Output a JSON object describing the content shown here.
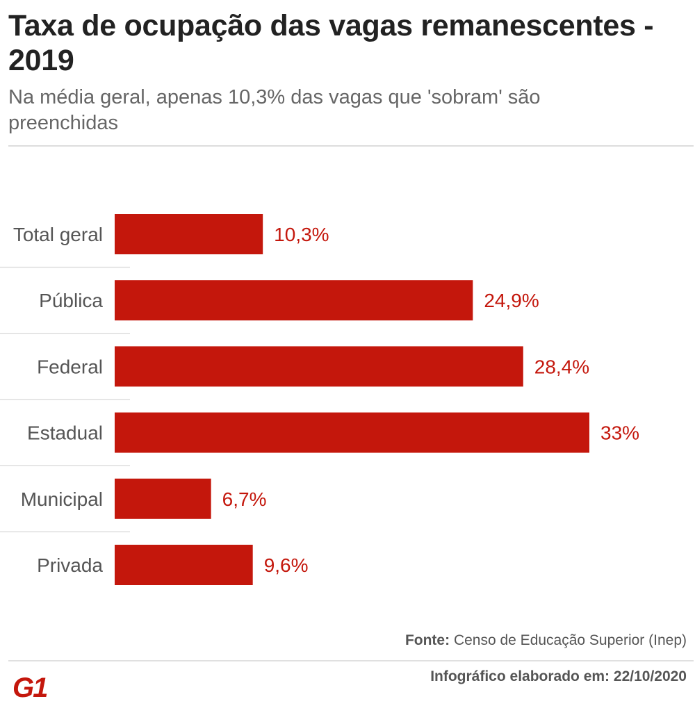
{
  "header": {
    "title": "Taxa de ocupação das vagas remanescentes - 2019",
    "subtitle": "Na média geral, apenas 10,3% das vagas que 'sobram' são preenchidas"
  },
  "footer": {
    "source_label": "Fonte:",
    "source_text": "Censo de Educação Superior (Inep)",
    "date_note": "Infográfico elaborado em: 22/10/2020",
    "logo_text": "G1"
  },
  "colors": {
    "bar": "#c4170c",
    "value_label": "#c4170c",
    "category_label": "#555555",
    "separator": "#dddddd"
  },
  "chart_data": {
    "type": "bar",
    "orientation": "horizontal",
    "categories": [
      "Total geral",
      "Pública",
      "Federal",
      "Estadual",
      "Municipal",
      "Privada"
    ],
    "values": [
      10.3,
      24.9,
      28.4,
      33,
      6.7,
      9.6
    ],
    "value_labels": [
      "10,3%",
      "24,9%",
      "28,4%",
      "33%",
      "6,7%",
      "9,6%"
    ],
    "title": "",
    "xlabel": "",
    "ylabel": "",
    "xlim": [
      0,
      33
    ],
    "grid": false,
    "legend": "none"
  }
}
